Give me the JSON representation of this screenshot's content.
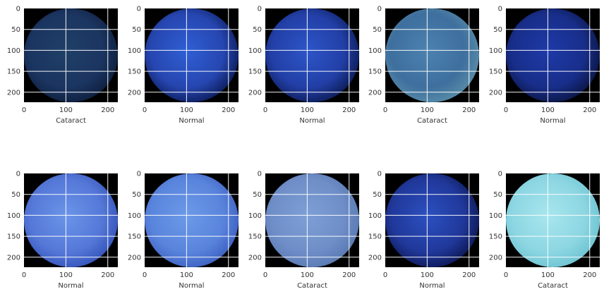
{
  "chart_data": {
    "type": "image-grid",
    "rows": 2,
    "cols": 5,
    "grid": true,
    "xlim": [
      0,
      224
    ],
    "ylim": [
      224,
      0
    ],
    "xticks": [
      0,
      100,
      200
    ],
    "yticks": [
      0,
      50,
      100,
      150,
      200
    ],
    "panels": [
      {
        "label": "Cataract",
        "colors": {
          "bg": "#000000",
          "inner": "#1f3f66",
          "mid": "#1b3561",
          "edge": "#0e1e3c"
        }
      },
      {
        "label": "Normal",
        "colors": {
          "bg": "#000000",
          "inner": "#2f5fd4",
          "mid": "#2646b0",
          "edge": "#0b1a55"
        }
      },
      {
        "label": "Normal",
        "colors": {
          "bg": "#000000",
          "inner": "#2d55c8",
          "mid": "#223fa6",
          "edge": "#0b1a52"
        }
      },
      {
        "label": "Cataract",
        "colors": {
          "bg": "#000000",
          "inner": "#4c82b0",
          "mid": "#3e6f9e",
          "edge": "#5a8ea8"
        }
      },
      {
        "label": "Normal",
        "colors": {
          "bg": "#000000",
          "inner": "#1e3aa8",
          "mid": "#182e8a",
          "edge": "#0a1440"
        }
      },
      {
        "label": "Normal",
        "colors": {
          "bg": "#000000",
          "inner": "#6a95e8",
          "mid": "#5578d8",
          "edge": "#3352b8"
        }
      },
      {
        "label": "Normal",
        "colors": {
          "bg": "#000000",
          "inner": "#6c9ae8",
          "mid": "#5984dc",
          "edge": "#3c5fc0"
        }
      },
      {
        "label": "Cataract",
        "colors": {
          "bg": "#000000",
          "inner": "#7d9fd6",
          "mid": "#6f8ec8",
          "edge": "#5878b0"
        }
      },
      {
        "label": "Normal",
        "colors": {
          "bg": "#000000",
          "inner": "#2c50c0",
          "mid": "#20389a",
          "edge": "#0c1650"
        }
      },
      {
        "label": "Cataract",
        "colors": {
          "bg": "#000000",
          "inner": "#a8e6ee",
          "mid": "#8cd6e2",
          "edge": "#6cc2d0"
        }
      }
    ]
  }
}
